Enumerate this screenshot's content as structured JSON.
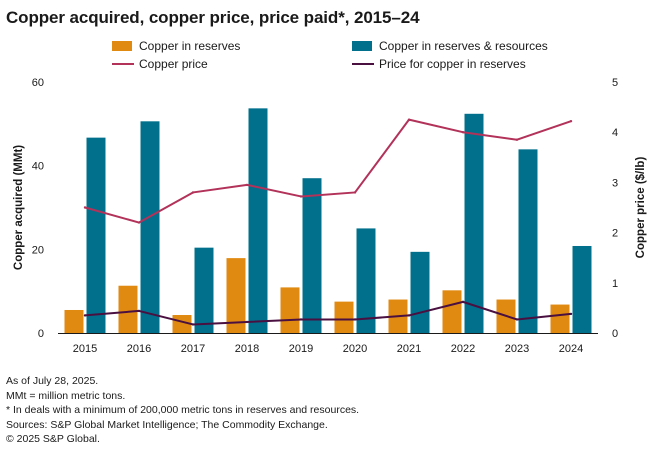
{
  "chart_data": {
    "type": "bar",
    "title": "Copper acquired, copper price, price paid*, 2015–24",
    "categories": [
      "2015",
      "2016",
      "2017",
      "2018",
      "2019",
      "2020",
      "2021",
      "2022",
      "2023",
      "2024"
    ],
    "series": [
      {
        "name": "Copper in reserves",
        "kind": "bar",
        "axis": "left",
        "color": "#E08A12",
        "values": [
          5.5,
          11.3,
          4.3,
          17.9,
          10.9,
          7.5,
          8.0,
          10.2,
          8.0,
          6.8
        ]
      },
      {
        "name": "Copper in reserves & resources",
        "kind": "bar",
        "axis": "left",
        "color": "#00708C",
        "values": [
          46.7,
          50.6,
          20.4,
          53.7,
          37.0,
          25.0,
          19.4,
          52.4,
          43.9,
          20.8
        ]
      },
      {
        "name": "Copper price",
        "kind": "line",
        "axis": "right",
        "color": "#B2325A",
        "values": [
          2.5,
          2.2,
          2.8,
          2.95,
          2.72,
          2.8,
          4.25,
          4.0,
          3.85,
          4.22
        ]
      },
      {
        "name": "Price for copper in reserves",
        "kind": "line",
        "axis": "right",
        "color": "#4A1040",
        "values": [
          0.35,
          0.44,
          0.17,
          0.22,
          0.27,
          0.27,
          0.35,
          0.62,
          0.27,
          0.38
        ]
      }
    ],
    "ylabel": "Copper acquired (MMt)",
    "ylim": [
      0,
      60
    ],
    "yticks": [
      "0",
      "20",
      "40",
      "60"
    ],
    "y2label": "Copper price ($/lb)",
    "y2lim": [
      0,
      5
    ],
    "y2ticks": [
      "0",
      "1",
      "2",
      "3",
      "4",
      "5"
    ],
    "grid": false,
    "legend_position": "top"
  },
  "notes": [
    "As of July 28, 2025.",
    "MMt = million metric tons.",
    "* In deals with a minimum of 200,000 metric tons in reserves and resources.",
    "Sources: S&P Global Market Intelligence; The Commodity Exchange.",
    "© 2025 S&P Global."
  ]
}
